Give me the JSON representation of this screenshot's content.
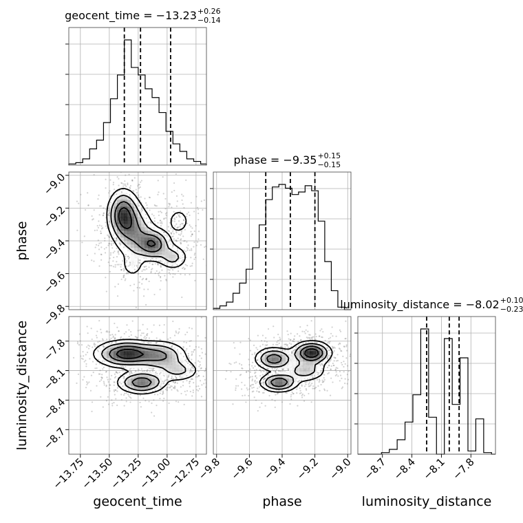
{
  "chart_data": {
    "type": "corner",
    "parameters": [
      {
        "key": "geocent_time",
        "label": "geocent_time",
        "range": [
          -13.85,
          -12.66
        ],
        "ticks": [
          -13.75,
          -13.5,
          -13.25,
          -13.0,
          -12.75
        ],
        "tick_labels": [
          "−13.75",
          "−13.50",
          "−13.25",
          "−13.00",
          "−12.75"
        ]
      },
      {
        "key": "phase",
        "label": "phase",
        "range": [
          -9.82,
          -8.98
        ],
        "ticks": [
          -9.8,
          -9.6,
          -9.4,
          -9.2,
          -9.0
        ],
        "tick_labels": [
          "−9.8",
          "−9.6",
          "−9.4",
          "−9.2",
          "−9.0"
        ]
      },
      {
        "key": "luminosity_distance",
        "label": "luminosity_distance",
        "range": [
          -8.95,
          -7.55
        ],
        "ticks": [
          -8.7,
          -8.4,
          -8.1,
          -7.8
        ],
        "tick_labels": [
          "−8.7",
          "−8.4",
          "−8.1",
          "−7.8"
        ]
      }
    ],
    "summaries": [
      {
        "name": "geocent_time",
        "prefix": "geocent_time = −13.23",
        "plus": "+0.26",
        "minus": "−0.14",
        "median": -13.23,
        "lower": -13.37,
        "upper": -12.97
      },
      {
        "name": "phase",
        "prefix": "phase = −9.35",
        "plus": "+0.15",
        "minus": "−0.15",
        "median": -9.35,
        "lower": -9.5,
        "upper": -9.2
      },
      {
        "name": "luminosity_distance",
        "prefix": "luminosity_distance = −8.02",
        "plus": "+0.10",
        "minus": "−0.23",
        "median": -8.02,
        "lower": -8.25,
        "upper": -7.92
      }
    ],
    "histograms": {
      "geocent_time": {
        "edges": [
          -13.85,
          -13.79,
          -13.73,
          -13.67,
          -13.61,
          -13.55,
          -13.49,
          -13.43,
          -13.37,
          -13.31,
          -13.25,
          -13.19,
          -13.13,
          -13.07,
          -13.01,
          -12.95,
          -12.89,
          -12.83,
          -12.77,
          -12.71,
          -12.66
        ],
        "counts": [
          0.01,
          0.02,
          0.05,
          0.13,
          0.2,
          0.34,
          0.53,
          0.72,
          1.0,
          0.78,
          0.72,
          0.61,
          0.54,
          0.42,
          0.27,
          0.17,
          0.11,
          0.05,
          0.03,
          0.01
        ]
      },
      "phase": {
        "edges": [
          -9.82,
          -9.78,
          -9.74,
          -9.7,
          -9.66,
          -9.62,
          -9.58,
          -9.54,
          -9.5,
          -9.46,
          -9.42,
          -9.38,
          -9.34,
          -9.3,
          -9.26,
          -9.22,
          -9.18,
          -9.14,
          -9.1,
          -9.06,
          -9.02,
          -8.98
        ],
        "counts": [
          0.01,
          0.03,
          0.06,
          0.13,
          0.21,
          0.32,
          0.49,
          0.67,
          0.87,
          0.97,
          0.99,
          0.96,
          0.91,
          0.93,
          0.98,
          0.94,
          0.7,
          0.38,
          0.15,
          0.02,
          0.0
        ]
      },
      "luminosity_distance": {
        "edges": [
          -8.95,
          -8.87,
          -8.79,
          -8.71,
          -8.63,
          -8.55,
          -8.47,
          -8.39,
          -8.31,
          -8.23,
          -8.15,
          -8.07,
          -7.99,
          -7.91,
          -7.83,
          -7.75,
          -7.67,
          -7.59,
          -7.55
        ],
        "counts": [
          0.0,
          0.0,
          0.0,
          0.01,
          0.03,
          0.09,
          0.2,
          0.37,
          0.78,
          0.23,
          0.0,
          0.72,
          0.31,
          0.6,
          0.02,
          0.22,
          0.01,
          0.0
        ]
      }
    },
    "densities": [
      {
        "x": "geocent_time",
        "y": "phase",
        "blobs": [
          {
            "cx": -13.38,
            "cy": -9.24,
            "sx": 0.07,
            "sy": 0.08,
            "w": 1.0
          },
          {
            "cx": -13.12,
            "cy": -9.42,
            "sx": 0.08,
            "sy": 0.05,
            "w": 0.9
          },
          {
            "cx": -13.28,
            "cy": -9.35,
            "sx": 0.09,
            "sy": 0.09,
            "w": 0.6
          },
          {
            "cx": -12.95,
            "cy": -9.5,
            "sx": 0.07,
            "sy": 0.04,
            "w": 0.45
          },
          {
            "cx": -12.9,
            "cy": -9.28,
            "sx": 0.06,
            "sy": 0.05,
            "w": 0.25
          },
          {
            "cx": -13.3,
            "cy": -9.55,
            "sx": 0.05,
            "sy": 0.04,
            "w": 0.25
          }
        ]
      },
      {
        "x": "geocent_time",
        "y": "luminosity_distance",
        "blobs": [
          {
            "cx": -13.35,
            "cy": -7.93,
            "sx": 0.14,
            "sy": 0.07,
            "w": 1.0
          },
          {
            "cx": -13.05,
            "cy": -7.95,
            "sx": 0.12,
            "sy": 0.08,
            "w": 0.55
          },
          {
            "cx": -13.22,
            "cy": -8.22,
            "sx": 0.11,
            "sy": 0.06,
            "w": 0.75
          },
          {
            "cx": -12.9,
            "cy": -8.1,
            "sx": 0.1,
            "sy": 0.06,
            "w": 0.35
          }
        ]
      },
      {
        "x": "phase",
        "y": "luminosity_distance",
        "blobs": [
          {
            "cx": -9.22,
            "cy": -7.92,
            "sx": 0.06,
            "sy": 0.06,
            "w": 1.0
          },
          {
            "cx": -9.45,
            "cy": -7.98,
            "sx": 0.06,
            "sy": 0.06,
            "w": 0.7
          },
          {
            "cx": -9.42,
            "cy": -8.22,
            "sx": 0.06,
            "sy": 0.05,
            "w": 0.75
          },
          {
            "cx": -9.26,
            "cy": -8.1,
            "sx": 0.07,
            "sy": 0.06,
            "w": 0.4
          }
        ]
      }
    ],
    "grid": true
  }
}
